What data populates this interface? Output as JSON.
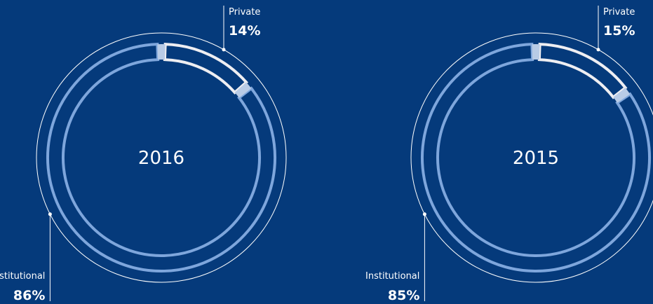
{
  "colors": {
    "background": "#053a7b",
    "institutional": "#7ea6dc",
    "private": "#eeeef2",
    "separator": "#b8cbe6",
    "outer_ring": "#ffffff"
  },
  "chart_data": [
    {
      "type": "pie",
      "center_label": "2016",
      "slices": [
        {
          "label": "Private",
          "value": 14,
          "value_label": "14%"
        },
        {
          "label": "Institutional",
          "value": 86,
          "value_label": "86%"
        }
      ]
    },
    {
      "type": "pie",
      "center_label": "2015",
      "slices": [
        {
          "label": "Private",
          "value": 15,
          "value_label": "15%"
        },
        {
          "label": "Institutional",
          "value": 85,
          "value_label": "85%"
        }
      ]
    }
  ]
}
